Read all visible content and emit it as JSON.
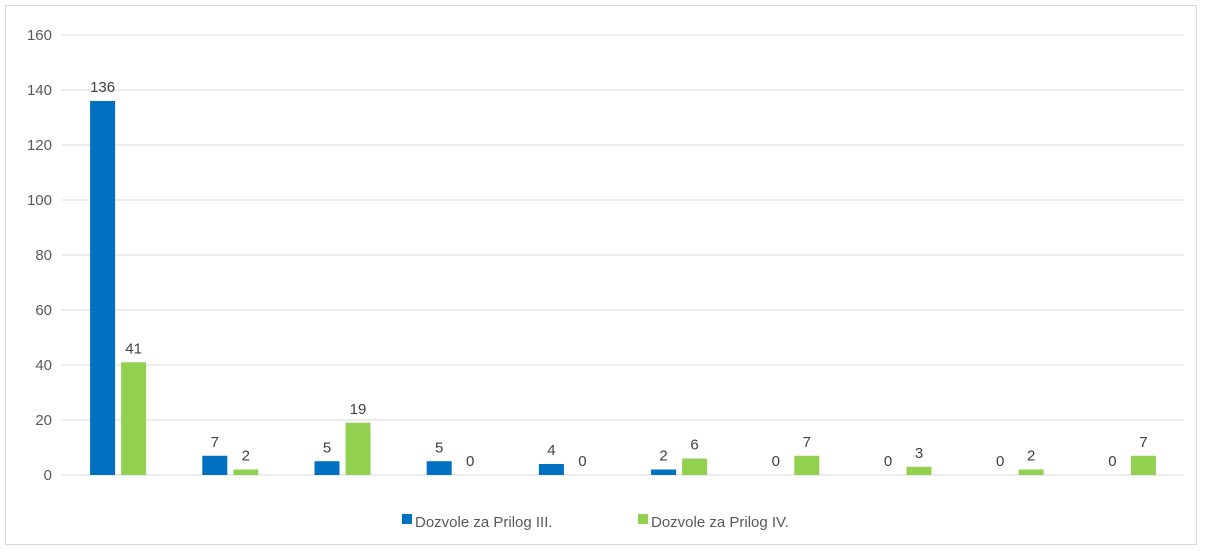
{
  "colors": {
    "series1": "#0070c0",
    "series2": "#92d050",
    "grid": "#d9d9d9",
    "axis_text": "#595959"
  },
  "chart_data": {
    "type": "bar",
    "categories": [
      "",
      "",
      "",
      "",
      "",
      "",
      "",
      "",
      "",
      ""
    ],
    "series": [
      {
        "name": "Dozvole za Prilog III.",
        "values": [
          136,
          7,
          5,
          5,
          4,
          2,
          0,
          0,
          0,
          0
        ]
      },
      {
        "name": "Dozvole za Prilog IV.",
        "values": [
          41,
          2,
          19,
          0,
          0,
          6,
          7,
          3,
          2,
          7
        ]
      }
    ],
    "title": "",
    "xlabel": "",
    "ylabel": "",
    "ylim": [
      0,
      160
    ],
    "yticks": [
      0,
      20,
      40,
      60,
      80,
      100,
      120,
      140,
      160
    ],
    "grid": true,
    "legend": "bottom",
    "data_labels": true
  }
}
